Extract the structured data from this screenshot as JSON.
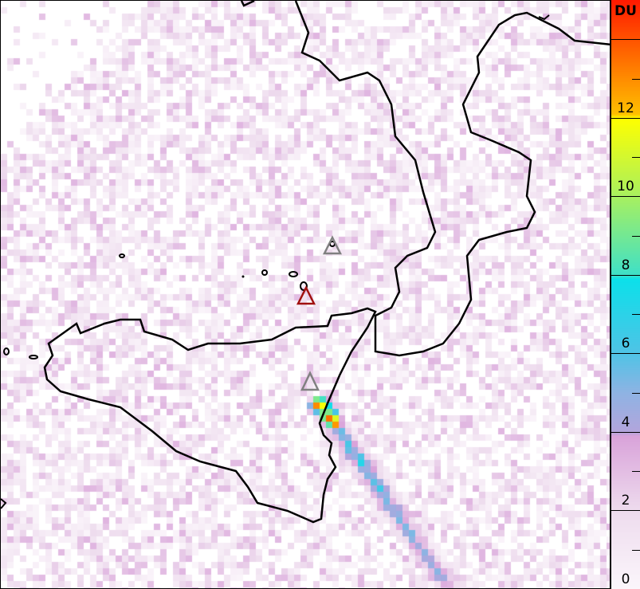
{
  "colorbar": {
    "unit": "DU",
    "min": 0,
    "max": 15,
    "tick_labels": [
      "0",
      "2",
      "4",
      "6",
      "8",
      "10",
      "12"
    ],
    "colors": [
      {
        "value": 0,
        "color": "#fbf6fb"
      },
      {
        "value": 2,
        "color": "#eedcee"
      },
      {
        "value": 3.9,
        "color": "#d9a3da"
      },
      {
        "value": 4,
        "color": "#b3a5dc"
      },
      {
        "value": 5,
        "color": "#8fb3e3"
      },
      {
        "value": 6,
        "color": "#50c3e6"
      },
      {
        "value": 7.9,
        "color": "#0ce0ea"
      },
      {
        "value": 8,
        "color": "#3fe0c8"
      },
      {
        "value": 10,
        "color": "#a8f060"
      },
      {
        "value": 12,
        "color": "#ffff00"
      },
      {
        "value": 12.1,
        "color": "#ffc000"
      },
      {
        "value": 15,
        "color": "#ff1a00"
      }
    ]
  },
  "markers": [
    {
      "name": "volcano-marker-stromboli",
      "icon": "triangle-icon",
      "color": "#808080"
    },
    {
      "name": "volcano-marker-vulcano",
      "icon": "triangle-icon",
      "color": "#a01010"
    },
    {
      "name": "volcano-marker-etna",
      "icon": "triangle-icon",
      "color": "#808080"
    }
  ],
  "coastline_color": "#000000"
}
